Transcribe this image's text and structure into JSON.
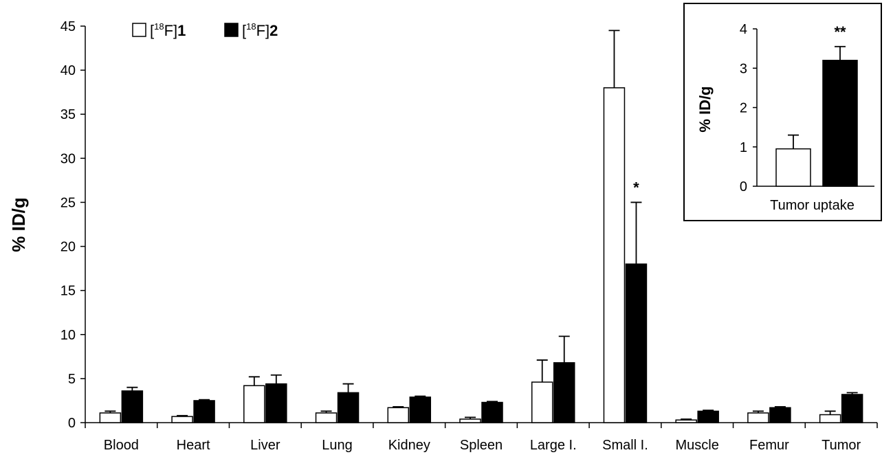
{
  "chart_data": [
    {
      "type": "bar",
      "ylabel": "% ID/g",
      "ylim": [
        0,
        45
      ],
      "yticks": [
        0,
        5,
        10,
        15,
        20,
        25,
        30,
        35,
        40,
        45
      ],
      "categories": [
        "Blood",
        "Heart",
        "Liver",
        "Lung",
        "Kidney",
        "Spleen",
        "Large I.",
        "Small I.",
        "Muscle",
        "Femur",
        "Tumor"
      ],
      "series": [
        {
          "name_prefix": "[",
          "name_sup": "18",
          "name_mid": "F]",
          "name_bold": "1",
          "color": "#ffffff",
          "values": [
            1.1,
            0.7,
            4.2,
            1.1,
            1.7,
            0.4,
            4.6,
            38.0,
            0.3,
            1.1,
            0.9
          ],
          "errors": [
            0.2,
            0.1,
            1.0,
            0.2,
            0.1,
            0.2,
            2.5,
            6.5,
            0.1,
            0.2,
            0.4
          ]
        },
        {
          "name_prefix": "[",
          "name_sup": "18",
          "name_mid": "F]",
          "name_bold": "2",
          "color": "#000000",
          "values": [
            3.6,
            2.5,
            4.4,
            3.4,
            2.9,
            2.3,
            6.8,
            18.0,
            1.3,
            1.7,
            3.2
          ],
          "errors": [
            0.4,
            0.1,
            1.0,
            1.0,
            0.1,
            0.1,
            3.0,
            7.0,
            0.1,
            0.1,
            0.2
          ]
        }
      ],
      "annotations": [
        {
          "category": "Small I.",
          "series": 1,
          "text": "*"
        }
      ],
      "legend_position": "top-left"
    },
    {
      "type": "bar",
      "ylabel": "% ID/g",
      "ylim": [
        0,
        4
      ],
      "yticks": [
        0,
        1,
        2,
        3,
        4
      ],
      "categories": [
        "Tumor uptake"
      ],
      "series": [
        {
          "color": "#ffffff",
          "values": [
            0.95
          ],
          "errors": [
            0.35
          ]
        },
        {
          "color": "#000000",
          "values": [
            3.2
          ],
          "errors": [
            0.35
          ]
        }
      ],
      "annotations": [
        {
          "category": "Tumor uptake",
          "series": 1,
          "text": "**"
        }
      ],
      "position": "top-right inset"
    }
  ]
}
